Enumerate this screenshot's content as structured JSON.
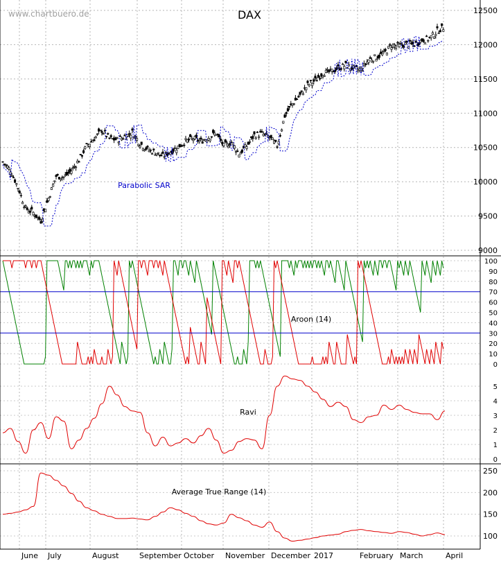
{
  "watermark": "www.chartbuero.de",
  "chart_data": [
    {
      "type": "line",
      "title": "DAX",
      "annotation": "Parabolic SAR",
      "series": [
        {
          "name": "Parabolic SAR"
        }
      ],
      "ylim": [
        9000,
        12500
      ],
      "y_ticks": [
        "12500",
        "12000",
        "11500",
        "11000",
        "10500",
        "10000",
        "9500",
        "9000"
      ],
      "months": [
        "June",
        "July",
        "August",
        "September",
        "October",
        "November",
        "December",
        "2017",
        "February",
        "March",
        "April"
      ],
      "weekly_close": [
        10290,
        10170,
        9920,
        9610,
        9550,
        9430,
        9760,
        10080,
        10070,
        10160,
        10320,
        10520,
        10630,
        10750,
        10630,
        10610,
        10660,
        10720,
        10560,
        10470,
        10430,
        10370,
        10440,
        10510,
        10590,
        10630,
        10590,
        10650,
        10710,
        10520,
        10580,
        10410,
        10520,
        10680,
        10700,
        10650,
        10520,
        10960,
        11140,
        11260,
        11410,
        11480,
        11590,
        11600,
        11660,
        11700,
        11650,
        11630,
        11780,
        11820,
        11870,
        11990,
        11980,
        12010,
        12000,
        12070,
        12090,
        12200,
        12260
      ]
    },
    {
      "type": "line",
      "title": "",
      "annotation": "Aroon (14)",
      "series": [
        {
          "name": "Aroon Up",
          "color": "#008000"
        },
        {
          "name": "Aroon Down",
          "color": "#e00000"
        }
      ],
      "ylim": [
        0,
        100
      ],
      "y_ticks": [
        "100",
        "90",
        "80",
        "70",
        "60",
        "50",
        "40",
        "30",
        "20",
        "10",
        "0"
      ],
      "reference_lines": [
        70,
        30
      ]
    },
    {
      "type": "line",
      "title": "",
      "annotation": "Ravi",
      "series": [
        {
          "name": "Ravi",
          "color": "#e00000"
        }
      ],
      "ylim": [
        0,
        5.5
      ],
      "y_ticks": [
        "5",
        "4",
        "3",
        "2",
        "1",
        "0"
      ],
      "values": [
        1.8,
        2.1,
        1.2,
        0.4,
        2.0,
        2.5,
        1.4,
        2.9,
        2.6,
        0.7,
        1.3,
        2.1,
        2.8,
        3.8,
        5.0,
        4.4,
        3.6,
        3.3,
        3.2,
        1.8,
        0.9,
        1.5,
        0.9,
        1.1,
        1.4,
        1.1,
        1.6,
        2.1,
        1.3,
        0.4,
        0.6,
        1.2,
        1.4,
        1.3,
        0.7,
        3.0,
        5.0,
        5.7,
        5.5,
        5.4,
        5.0,
        4.6,
        4.1,
        3.6,
        3.9,
        3.6,
        2.7,
        2.5,
        2.9,
        3.0,
        3.7,
        3.4,
        3.7,
        3.4,
        3.2,
        3.1,
        3.1,
        2.7,
        3.3
      ]
    },
    {
      "type": "line",
      "title": "",
      "annotation": "Average True Range (14)",
      "series": [
        {
          "name": "Average True Range (14)",
          "color": "#e00000"
        }
      ],
      "ylim": [
        90,
        260
      ],
      "y_ticks": [
        "250",
        "200",
        "150",
        "100"
      ],
      "values": [
        150,
        152,
        155,
        160,
        168,
        245,
        240,
        228,
        215,
        198,
        180,
        165,
        158,
        150,
        145,
        140,
        140,
        141,
        139,
        137,
        145,
        155,
        165,
        160,
        152,
        145,
        135,
        128,
        125,
        130,
        150,
        142,
        135,
        125,
        120,
        132,
        110,
        95,
        88,
        90,
        93,
        96,
        100,
        102,
        104,
        110,
        113,
        115,
        112,
        110,
        108,
        106,
        110,
        108,
        104,
        100,
        103,
        107,
        103
      ]
    }
  ]
}
